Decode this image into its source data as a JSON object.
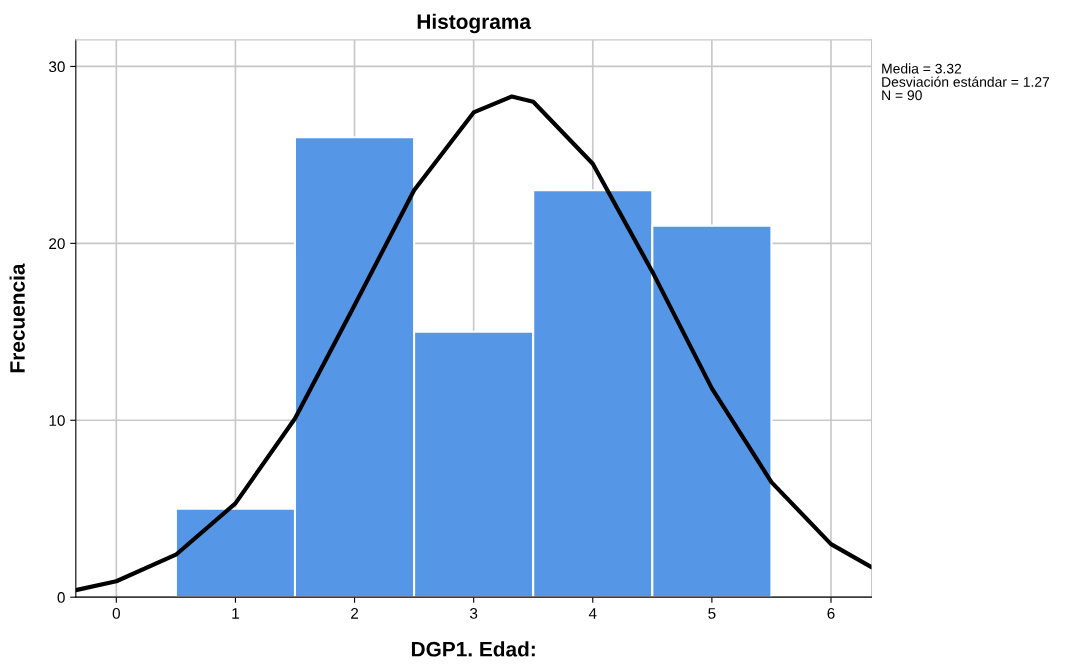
{
  "chart_data": {
    "type": "histogram",
    "title": "Histograma",
    "xlabel": "DGP1. Edad:",
    "ylabel": "Frecuencia",
    "bins": [
      0.5,
      1.5,
      2.5,
      3.5,
      4.5,
      5.5
    ],
    "values": [
      5,
      26,
      15,
      23,
      21
    ],
    "color": "#5596e6",
    "series": [
      {
        "type": "line",
        "color": "#000000",
        "x": [
          -0.34,
          0,
          0.5,
          1,
          1.5,
          2,
          2.5,
          3,
          3.32,
          3.5,
          4,
          4.5,
          5,
          5.5,
          6,
          6.34
        ],
        "values": [
          0.4,
          0.9,
          2.4,
          5.3,
          10.1,
          16.5,
          23.0,
          27.4,
          28.3,
          28.0,
          24.5,
          18.4,
          11.8,
          6.5,
          3.0,
          1.7
        ]
      }
    ],
    "xlim": [
      -0.34,
      6.34
    ],
    "xticks": [
      0,
      1,
      2,
      3,
      4,
      5,
      6
    ],
    "ylim": [
      0,
      31.5
    ],
    "yticks": [
      0,
      10,
      20,
      30
    ],
    "grid": true,
    "legend": false,
    "annotations": [
      "Media = 3.32",
      "Desviación estándar = 1.27",
      "N = 90"
    ]
  }
}
